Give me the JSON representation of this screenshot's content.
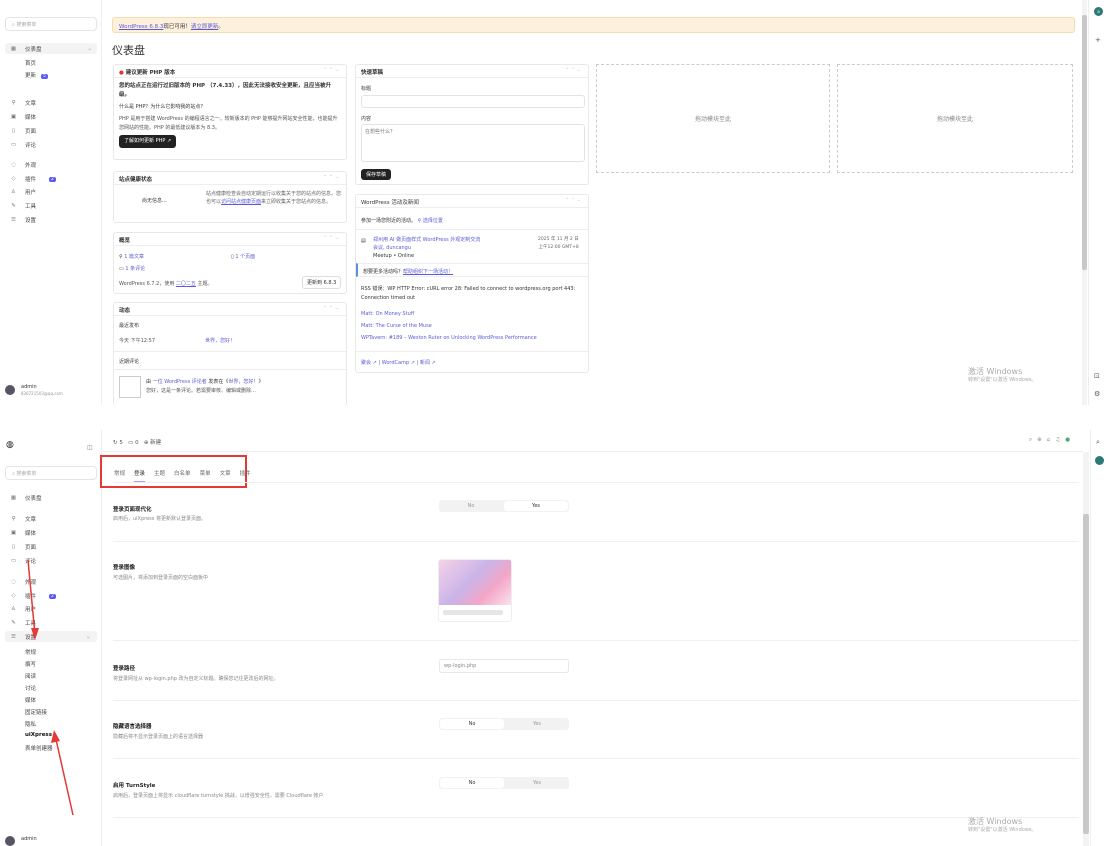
{
  "top": {
    "search_placeholder": "搜索菜单",
    "nav": {
      "dashboard": "仪表盘",
      "home": "首页",
      "updates": "更新",
      "updates_count": "5",
      "posts": "文章",
      "media": "媒体",
      "pages": "页面",
      "comments": "评论",
      "appearance": "外观",
      "plugins": "插件",
      "plugins_count": "2",
      "users": "用户",
      "tools": "工具",
      "settings": "设置"
    },
    "user": {
      "name": "admin",
      "email": "836721503@qq.com"
    },
    "notice": {
      "link1": "WordPress 6.8.3",
      "text": "现已可用！",
      "link2": "请立即更新",
      "end": "。"
    },
    "page_title": "仪表盘",
    "php": {
      "title": "建议更新 PHP 版本",
      "lead": "您的站点正在运行过旧版本的 PHP （7.4.33），因此无法接收安全更新，且应当被升级。",
      "q": "什么是 PHP？为什么它影响我的站点？",
      "body": "PHP 是用于搭建 WordPress 的编程语言之一。较新版本的 PHP 能够提升网站安全性能，也能提升您网站的性能。PHP 的最低建议版本为 8.3。",
      "button": "了解如何更新 PHP"
    },
    "health": {
      "title": "站点健康状态",
      "status": "尚无信息…",
      "body": "站点健康检查会自动定期运行以收集关于您的站点的信息。您也可以",
      "link": "访问站点健康页面",
      "body2": "来立即收集关于您站点的信息。"
    },
    "glance": {
      "title": "概览",
      "posts": "1 篇文章",
      "pages": "1 个页面",
      "comments": "1 条评论",
      "version_text": "WordPress 6.7.2，使用",
      "theme": "二〇二五",
      "theme_suffix": "主题。",
      "update_button": "更新到 6.8.3"
    },
    "activity": {
      "title": "动态",
      "recent": "最近发布",
      "time": "今天 下午12:57",
      "post": "世界，您好！",
      "recent_comments": "近期评论",
      "comment_from": "由",
      "commenter": "一位 WordPress 评论者",
      "on": "发表在《",
      "comment_post": "世界，您好！",
      "close": "》",
      "comment_text": "您好，这是一条评论。若需要审核、编辑或删除…"
    },
    "draft": {
      "title": "快速草稿",
      "title_label": "标题",
      "content_label": "内容",
      "content_placeholder": "在想些什么？",
      "save": "保存草稿"
    },
    "events": {
      "title": "WordPress 活动及新闻",
      "city_prefix": "参加一场您附近的活动。",
      "select_location": "选择位置",
      "event_title": "郑州用 AI 做页面样式 WordPress 外观定制交流",
      "event_title2": "会议, duncangu",
      "event_sub": "Meetup • Online",
      "event_date": "2025 年 11 月 2 日",
      "event_time": "上午12:00 GMT+8",
      "more": "想要更多活动吗？",
      "more_link": "帮助组织下一场活动！",
      "rss_error": "RSS 错误：WP HTTP Error: cURL error 28: Failed to connect to wordpress.org port 443: Connection timed out",
      "news": [
        "Matt: On Money Stuff",
        "Matt: The Curse of the Muse",
        "WPTavern: #189 – Weston Ruter on Unlocking WordPress Performance"
      ],
      "footer": [
        "聚会",
        "WordCamp",
        "新闻"
      ]
    },
    "drop_zone": "拖动模块至此",
    "windows": {
      "title": "激活 Windows",
      "sub": "转到\"设置\"以激活 Windows。"
    }
  },
  "bottom": {
    "toolbar": {
      "updates": "5",
      "comments": "0",
      "new": "新建"
    },
    "search_placeholder": "搜索菜单",
    "nav": {
      "dashboard": "仪表盘",
      "posts": "文章",
      "media": "媒体",
      "pages": "页面",
      "comments": "评论",
      "appearance": "外观",
      "plugins": "插件",
      "plugins_count": "2",
      "users": "用户",
      "tools": "工具",
      "settings": "设置"
    },
    "settings_sub": [
      "常规",
      "撰写",
      "阅读",
      "讨论",
      "媒体",
      "固定链接",
      "隐私",
      "uiXpress",
      "表单创建器"
    ],
    "tabs": [
      "常规",
      "登录",
      "主题",
      "白名单",
      "菜单",
      "文章",
      "插件"
    ],
    "active_tab": 1,
    "rows": [
      {
        "title": "登录页面现代化",
        "desc": "启用后，uiXpress 将更新默认登录页面。",
        "no": "No",
        "yes": "Yes",
        "value": "Yes"
      },
      {
        "title": "登录图像",
        "desc": "可选图片，将添加到登录页面的空白面板中"
      },
      {
        "title": "登录路径",
        "desc": "将登录网址从 wp-login.php 改为自定义标题。确保您记住更改后的网址。",
        "placeholder": "wp-login.php"
      },
      {
        "title": "隐藏语言选择器",
        "desc": "隐藏后将不显示登录页面上的语言选择器",
        "no": "No",
        "yes": "Yes",
        "value": "No"
      },
      {
        "title": "启用 TurnStyle",
        "desc": "启用后，登录页面上将显示 cloudflare turnstyle 挑战，以增强安全性。需要 Cloudflare 帐户",
        "no": "No",
        "yes": "Yes",
        "value": "No"
      }
    ],
    "user": {
      "name": "admin"
    },
    "windows": {
      "title": "激活 Windows",
      "sub": "转到\"设置\"以激活 Windows。"
    }
  },
  "colors": {
    "accent": "#5b5bf0",
    "highlight_box": "#e53935",
    "notice_bg": "#fdf0dc"
  }
}
